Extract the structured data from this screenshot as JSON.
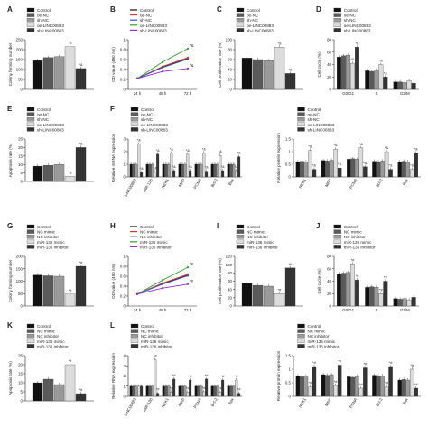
{
  "series_colors": [
    "#111111",
    "#5a5a5a",
    "#9a9a9a",
    "#dcdcdc",
    "#333333"
  ],
  "panels": [
    {
      "letter": "A",
      "type": "bar",
      "ylabel": "Colony forming number",
      "ymax": 250,
      "yticks": [
        0,
        50,
        100,
        150,
        200,
        250
      ],
      "legend": [
        "Control",
        "oe-NC",
        "sh-NC",
        "oe-LINC00883",
        "sh-LINC00883"
      ],
      "groups": [
        {
          "label": "",
          "values": [
            145,
            160,
            165,
            215,
            105
          ],
          "marks": [
            "",
            "",
            "",
            "*&",
            "*&"
          ]
        }
      ]
    },
    {
      "letter": "B",
      "type": "line",
      "ylabel": "OD value (490 nm)",
      "ymax": 1.0,
      "yticks": [
        0,
        0.2,
        0.4,
        0.6,
        0.8,
        1.0
      ],
      "x": [
        "24 h",
        "48 h",
        "72 h"
      ],
      "legend": [
        "Control",
        "oe-NC",
        "sh-NC",
        "oe-LINC00883",
        "sh-LINC00883"
      ],
      "series_colors": [
        "#111111",
        "#e0301e",
        "#2a56d6",
        "#2c9e2c",
        "#8b2fc9"
      ],
      "series": [
        [
          0.22,
          0.45,
          0.62
        ],
        [
          0.22,
          0.46,
          0.64
        ],
        [
          0.22,
          0.44,
          0.61
        ],
        [
          0.22,
          0.55,
          0.82
        ],
        [
          0.22,
          0.36,
          0.42
        ]
      ],
      "marks": [
        "*&",
        "*&"
      ]
    },
    {
      "letter": "C",
      "type": "bar",
      "ylabel": "Cell proliferation rate (%)",
      "ymax": 100,
      "yticks": [
        0,
        20,
        40,
        60,
        80,
        100
      ],
      "legend": [
        "Control",
        "oe-NC",
        "sh-NC",
        "oe-LINC00883",
        "sh-LINC00883"
      ],
      "groups": [
        {
          "label": "",
          "values": [
            63,
            60,
            58,
            85,
            32
          ],
          "marks": [
            "",
            "",
            "",
            "*&",
            "*&"
          ]
        }
      ]
    },
    {
      "letter": "D",
      "type": "bar",
      "ylabel": "Cell cycle (%)",
      "ymax": 80,
      "yticks": [
        0,
        20,
        40,
        60,
        80
      ],
      "legend": [
        "Control",
        "oe-NC",
        "sh-NC",
        "oe-LINC00883",
        "sh-LINC00883"
      ],
      "groups": [
        {
          "label": "G0/G1",
          "values": [
            52,
            54,
            55,
            42,
            68
          ],
          "marks": [
            "",
            "",
            "",
            "*&",
            "*&"
          ]
        },
        {
          "label": "S",
          "values": [
            30,
            29,
            31,
            40,
            20
          ],
          "marks": [
            "",
            "",
            "",
            "*&",
            "*&"
          ]
        },
        {
          "label": "G2/M",
          "values": [
            12,
            12,
            11,
            14,
            10
          ],
          "marks": [
            "",
            "",
            "",
            "",
            ""
          ]
        }
      ]
    },
    {
      "letter": "E",
      "type": "bar",
      "ylabel": "Apoptosis rate (%)",
      "ymax": 25,
      "yticks": [
        0,
        5,
        10,
        15,
        20,
        25
      ],
      "legend": [
        "Control",
        "oe-NC",
        "sh-NC",
        "oe-LINC00883",
        "sh-LINC00883"
      ],
      "groups": [
        {
          "label": "",
          "values": [
            9,
            9.5,
            10,
            3,
            20
          ],
          "marks": [
            "",
            "",
            "",
            "*&",
            "*&"
          ]
        }
      ]
    },
    {
      "letter": "F",
      "type": "bar",
      "ylabel": "Relative mRNA expression",
      "ymax": 3,
      "yticks": [
        0,
        1,
        2,
        3
      ],
      "legend": [
        "Control",
        "oe-NC",
        "sh-NC",
        "oe-LINC00883",
        "sh-LINC00883"
      ],
      "groups": [
        {
          "label": "LINC00883",
          "values": [
            1,
            1,
            1,
            2.6,
            0.35
          ],
          "marks": [
            "",
            "",
            "",
            "*&",
            "*&"
          ]
        },
        {
          "label": "miR-136",
          "values": [
            1,
            1,
            1,
            0.4,
            1.8
          ],
          "marks": [
            "",
            "",
            "",
            "*&",
            "*&"
          ]
        },
        {
          "label": "NEK1",
          "values": [
            1,
            1,
            1,
            1.9,
            0.5
          ],
          "marks": [
            "",
            "",
            "",
            "*&",
            "*&"
          ]
        },
        {
          "label": "MRP",
          "values": [
            1,
            1,
            1,
            1.8,
            0.5
          ],
          "marks": [
            "",
            "",
            "",
            "*&",
            "*&"
          ]
        },
        {
          "label": "PCNA",
          "values": [
            1,
            1,
            1,
            1.9,
            0.45
          ],
          "marks": [
            "",
            "",
            "",
            "*&",
            "*&"
          ]
        },
        {
          "label": "Bcl-2",
          "values": [
            1,
            1,
            1,
            1.7,
            0.5
          ],
          "marks": [
            "",
            "",
            "",
            "*&",
            "*&"
          ]
        },
        {
          "label": "Bax",
          "values": [
            1,
            1,
            1,
            0.5,
            1.6
          ],
          "marks": [
            "",
            "",
            "",
            "*&",
            "*&"
          ]
        }
      ]
    },
    {
      "letter": "",
      "type": "bar",
      "ylabel": "Relative protein expression",
      "ymax": 1.5,
      "yticks": [
        0,
        0.5,
        1.0,
        1.5
      ],
      "legend": [
        "Control",
        "oe-NC",
        "sh-NC",
        "oe-LINC00883",
        "sh-LINC00883"
      ],
      "groups": [
        {
          "label": "NEK1",
          "values": [
            0.6,
            0.62,
            0.6,
            1.05,
            0.3
          ],
          "marks": [
            "",
            "",
            "",
            "*&",
            "*&"
          ]
        },
        {
          "label": "MRP",
          "values": [
            0.65,
            0.63,
            0.66,
            1.1,
            0.35
          ],
          "marks": [
            "",
            "",
            "",
            "*&",
            "*&"
          ]
        },
        {
          "label": "PCNA",
          "values": [
            0.7,
            0.72,
            0.7,
            1.15,
            0.4
          ],
          "marks": [
            "",
            "",
            "",
            "*&",
            "*&"
          ]
        },
        {
          "label": "Bcl-2",
          "values": [
            0.62,
            0.6,
            0.63,
            1.0,
            0.3
          ],
          "marks": [
            "",
            "",
            "",
            "*&",
            "*&"
          ]
        },
        {
          "label": "Bax",
          "values": [
            0.6,
            0.62,
            0.6,
            0.3,
            0.95
          ],
          "marks": [
            "",
            "",
            "",
            "*&",
            "*&"
          ]
        }
      ]
    },
    {
      "letter": "G",
      "type": "bar",
      "ylabel": "Colony forming number",
      "ymax": 200,
      "yticks": [
        0,
        50,
        100,
        150,
        200
      ],
      "legend": [
        "Control",
        "NC mimic",
        "NC inhibitor",
        "miR-136 mimic",
        "miR-136 inhibitor"
      ],
      "groups": [
        {
          "label": "",
          "values": [
            125,
            122,
            120,
            48,
            160
          ],
          "marks": [
            "",
            "",
            "",
            "*#",
            "*#"
          ]
        }
      ]
    },
    {
      "letter": "H",
      "type": "line",
      "ylabel": "OD value (490 nm)",
      "ymax": 1.0,
      "yticks": [
        0,
        0.2,
        0.4,
        0.6,
        0.8,
        1.0
      ],
      "x": [
        "24 h",
        "48 h",
        "72 h"
      ],
      "legend": [
        "Control",
        "NC mimic",
        "NC inhibitor",
        "miR-136 mimic",
        "miR-136 inhibitor"
      ],
      "series_colors": [
        "#111111",
        "#e0301e",
        "#2a56d6",
        "#2c9e2c",
        "#8b2fc9"
      ],
      "series": [
        [
          0.24,
          0.45,
          0.62
        ],
        [
          0.24,
          0.46,
          0.64
        ],
        [
          0.24,
          0.44,
          0.61
        ],
        [
          0.24,
          0.52,
          0.78
        ],
        [
          0.24,
          0.36,
          0.44
        ]
      ],
      "marks": [
        "*#",
        "*#"
      ]
    },
    {
      "letter": "I",
      "type": "bar",
      "ylabel": "Cell proliferation rate (%)",
      "ymax": 120,
      "yticks": [
        0,
        20,
        40,
        60,
        80,
        100,
        120
      ],
      "legend": [
        "Control",
        "NC mimic",
        "NC inhibitor",
        "miR-136 mimic",
        "miR-136 inhibitor"
      ],
      "groups": [
        {
          "label": "",
          "values": [
            55,
            50,
            48,
            30,
            92
          ],
          "marks": [
            "",
            "",
            "",
            "*#",
            "*#"
          ]
        }
      ]
    },
    {
      "letter": "J",
      "type": "bar",
      "ylabel": "Cell cycle (%)",
      "ymax": 80,
      "yticks": [
        0,
        20,
        40,
        60,
        80
      ],
      "legend": [
        "Control",
        "NC mimic",
        "NC inhibitor",
        "miR-136 mimic",
        "miR-136 inhibitor"
      ],
      "groups": [
        {
          "label": "G0/G1",
          "values": [
            52,
            53,
            54,
            68,
            42
          ],
          "marks": [
            "",
            "",
            "",
            "*#",
            "*#"
          ]
        },
        {
          "label": "S",
          "values": [
            30,
            31,
            30,
            20,
            40
          ],
          "marks": [
            "",
            "",
            "",
            "*#",
            "*#"
          ]
        },
        {
          "label": "G2/M",
          "values": [
            12,
            11,
            12,
            10,
            14
          ],
          "marks": [
            "",
            "",
            "",
            "",
            ""
          ]
        }
      ]
    },
    {
      "letter": "K",
      "type": "bar",
      "ylabel": "Apoptosis rate (%)",
      "ymax": 25,
      "yticks": [
        0,
        5,
        10,
        15,
        20,
        25
      ],
      "legend": [
        "Control",
        "NC mimic",
        "NC inhibitor",
        "miR-136 mimic",
        "miR-136 inhibitor"
      ],
      "groups": [
        {
          "label": "",
          "values": [
            10,
            12,
            9,
            20,
            4
          ],
          "marks": [
            "",
            "",
            "",
            "*#",
            "*#"
          ]
        }
      ]
    },
    {
      "letter": "L",
      "type": "bar",
      "ylabel": "Relative RNA expression",
      "ymax": 4,
      "yticks": [
        0,
        1,
        2,
        3,
        4
      ],
      "legend": [
        "Control",
        "NC mimic",
        "NC inhibitor",
        "miR-136 mimic",
        "miR-136 inhibitor"
      ],
      "groups": [
        {
          "label": "LINC00883",
          "values": [
            1,
            1,
            1,
            1,
            1
          ],
          "marks": [
            "",
            "",
            "",
            "",
            ""
          ]
        },
        {
          "label": "miR-136",
          "values": [
            1,
            1,
            1,
            3.6,
            0.3
          ],
          "marks": [
            "",
            "",
            "",
            "*#",
            "*#"
          ]
        },
        {
          "label": "NEK1",
          "values": [
            1,
            1,
            1,
            0.4,
            1.7
          ],
          "marks": [
            "",
            "",
            "",
            "*#",
            "*#"
          ]
        },
        {
          "label": "MRP",
          "values": [
            1,
            1,
            1,
            0.4,
            1.6
          ],
          "marks": [
            "",
            "",
            "",
            "*#",
            "*#"
          ]
        },
        {
          "label": "PCNA",
          "values": [
            1,
            1,
            1,
            0.45,
            1.7
          ],
          "marks": [
            "",
            "",
            "",
            "*#",
            "*#"
          ]
        },
        {
          "label": "Bcl-2",
          "values": [
            1,
            1,
            1,
            0.4,
            1.6
          ],
          "marks": [
            "",
            "",
            "",
            "*#",
            "*#"
          ]
        },
        {
          "label": "Bax",
          "values": [
            1,
            1,
            1,
            1.6,
            0.3
          ],
          "marks": [
            "",
            "",
            "",
            "*#",
            "*#"
          ]
        }
      ]
    },
    {
      "letter": "",
      "type": "bar",
      "ylabel": "Relative protein expression",
      "ymax": 1.5,
      "yticks": [
        0,
        0.5,
        1.0,
        1.5
      ],
      "legend": [
        "Control",
        "NC mimic",
        "NC inhibitor",
        "miR-136 mimic",
        "miR-136 inhibitor"
      ],
      "groups": [
        {
          "label": "NEK1",
          "values": [
            0.75,
            0.72,
            0.74,
            0.35,
            1.1
          ],
          "marks": [
            "",
            "",
            "",
            "*#",
            "*#"
          ]
        },
        {
          "label": "MRP",
          "values": [
            0.8,
            0.78,
            0.8,
            0.4,
            1.15
          ],
          "marks": [
            "",
            "",
            "",
            "*#",
            "*#"
          ]
        },
        {
          "label": "PCNA",
          "values": [
            0.72,
            0.7,
            0.74,
            0.3,
            1.05
          ],
          "marks": [
            "",
            "",
            "",
            "*#",
            "*#"
          ]
        },
        {
          "label": "Bcl-2",
          "values": [
            0.78,
            0.75,
            0.76,
            0.35,
            1.1
          ],
          "marks": [
            "",
            "",
            "",
            "*#",
            "*#"
          ]
        },
        {
          "label": "Bax",
          "values": [
            0.6,
            0.62,
            0.6,
            1.0,
            0.3
          ],
          "marks": [
            "",
            "",
            "",
            "*#",
            "*#"
          ]
        }
      ]
    }
  ]
}
